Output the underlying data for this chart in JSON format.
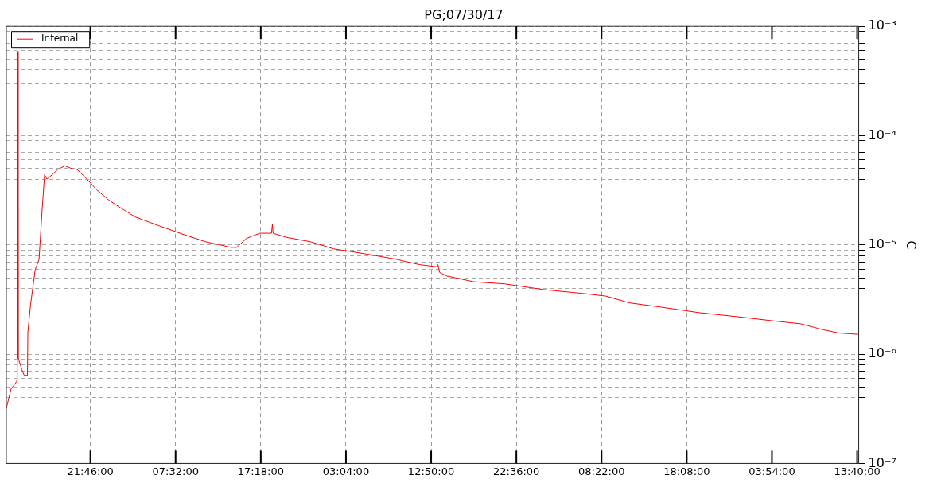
{
  "chart_data": {
    "type": "line",
    "title": "PG;07/30/17",
    "ylabel": "C",
    "xlim": [
      "--07-30T12:08",
      "--08-03T13:51"
    ],
    "xticks": [
      {
        "value": "--07-30T21:46",
        "label": "21:46:00"
      },
      {
        "value": "--07-31T07:32",
        "label": "07:32:00"
      },
      {
        "value": "--07-31T17:18",
        "label": "17:18:00"
      },
      {
        "value": "--08-01T03:04",
        "label": "03:04:00"
      },
      {
        "value": "--08-01T12:50",
        "label": "12:50:00"
      },
      {
        "value": "--08-01T22:36",
        "label": "22:36:00"
      },
      {
        "value": "--08-02T08:22",
        "label": "08:22:00"
      },
      {
        "value": "--08-02T18:08",
        "label": "18:08:00"
      },
      {
        "value": "--08-03T03:54",
        "label": "03:54:00"
      },
      {
        "value": "--08-03T13:40",
        "label": "13:40:00"
      }
    ],
    "ylim": [
      1e-07,
      0.001
    ],
    "yticks": [
      {
        "value": 1e-07,
        "label": "10⁻⁷"
      },
      {
        "value": 2e-07,
        "label": null
      },
      {
        "value": 3e-07,
        "label": null
      },
      {
        "value": 4e-07,
        "label": null
      },
      {
        "value": 5e-07,
        "label": null
      },
      {
        "value": 6e-07,
        "label": null
      },
      {
        "value": 7e-07,
        "label": null
      },
      {
        "value": 8e-07,
        "label": null
      },
      {
        "value": 9e-07,
        "label": null
      },
      {
        "value": 1e-06,
        "label": "10⁻⁶"
      },
      {
        "value": 2e-06,
        "label": null
      },
      {
        "value": 3e-06,
        "label": null
      },
      {
        "value": 4e-06,
        "label": null
      },
      {
        "value": 5e-06,
        "label": null
      },
      {
        "value": 6e-06,
        "label": null
      },
      {
        "value": 7e-06,
        "label": null
      },
      {
        "value": 8e-06,
        "label": null
      },
      {
        "value": 9e-06,
        "label": null
      },
      {
        "value": 1e-05,
        "label": "10⁻⁵"
      },
      {
        "value": 2e-05,
        "label": null
      },
      {
        "value": 3e-05,
        "label": null
      },
      {
        "value": 4e-05,
        "label": null
      },
      {
        "value": 5e-05,
        "label": null
      },
      {
        "value": 6e-05,
        "label": null
      },
      {
        "value": 7e-05,
        "label": null
      },
      {
        "value": 8e-05,
        "label": null
      },
      {
        "value": 9e-05,
        "label": null
      },
      {
        "value": 0.0001,
        "label": "10⁻⁴"
      },
      {
        "value": 0.0002,
        "label": null
      },
      {
        "value": 0.0003,
        "label": null
      },
      {
        "value": 0.0004,
        "label": null
      },
      {
        "value": 0.0005,
        "label": null
      },
      {
        "value": 0.0006,
        "label": null
      },
      {
        "value": 0.0007,
        "label": null
      },
      {
        "value": 0.0008,
        "label": null
      },
      {
        "value": 0.0009,
        "label": null
      },
      {
        "value": 0.001,
        "label": "10⁻³"
      }
    ],
    "log": "y",
    "grid": true,
    "legend": "top left",
    "marker": "none",
    "line_style": "solid",
    "series": [
      {
        "name": "Internal",
        "color": "#ff0000",
        "x": [
          "--07-30T12:08",
          "--07-30T12:40",
          "--07-30T13:18",
          "--07-30T13:23",
          "--07-30T13:26",
          "--07-30T13:29",
          "--07-30T13:31",
          "--07-30T13:55",
          "--07-30T14:11",
          "--07-30T14:33",
          "--07-30T14:36",
          "--07-30T14:38",
          "--07-30T14:54",
          "--07-30T15:26",
          "--07-30T15:53",
          "--07-30T16:14",
          "--07-30T16:31",
          "--07-30T16:47",
          "--07-30T17:24",
          "--07-30T18:01",
          "--07-30T18:50",
          "--07-30T19:38",
          "--07-30T20:15",
          "--07-30T21:08",
          "--07-30T22:29",
          "--07-30T23:49",
          "--07-31T01:10",
          "--07-31T02:56",
          "--07-31T05:37",
          "--07-31T08:17",
          "--07-31T10:58",
          "--07-31T13:54",
          "--07-31T14:32",
          "--07-31T15:41",
          "--07-31T17:12",
          "--07-31T18:32",
          "--07-31T18:38",
          "--07-31T18:43",
          "--07-31T20:19",
          "--07-31T22:59",
          "--08-01T01:40",
          "--08-01T05:14",
          "--08-01T08:48",
          "--08-01T11:29",
          "--08-01T13:32",
          "--08-01T13:37",
          "--08-01T13:48",
          "--08-01T14:36",
          "--08-01T17:43",
          "--08-01T21:17",
          "--08-02T01:44",
          "--08-02T06:12",
          "--08-02T08:52",
          "--08-02T11:33",
          "--08-02T15:07",
          "--08-02T19:34",
          "--08-03T00:02",
          "--08-03T04:29",
          "--08-03T07:10",
          "--08-03T09:50",
          "--08-03T11:37",
          "--08-03T13:51"
        ],
        "values": [
          3.2e-07,
          4.8e-07,
          5.6e-07,
          5.9e-07,
          0.00059,
          9.1e-07,
          9.1e-07,
          7.2e-07,
          6.4e-07,
          6.4e-07,
          1.6e-06,
          1.6e-06,
          2.8e-06,
          5.9e-06,
          7.4e-06,
          2.1e-05,
          4.4e-05,
          4e-05,
          4.4e-05,
          4.9e-05,
          5.3e-05,
          5e-05,
          4.9e-05,
          4.2e-05,
          3.2e-05,
          2.6e-05,
          2.2e-05,
          1.8e-05,
          1.5e-05,
          1.26e-05,
          1.07e-05,
          9.5e-06,
          9.5e-06,
          1.15e-05,
          1.28e-05,
          1.28e-05,
          1.55e-05,
          1.28e-05,
          1.17e-05,
          1.07e-05,
          9.2e-06,
          8.3e-06,
          7.4e-06,
          6.6e-06,
          6.3e-06,
          6.6e-06,
          5.6e-06,
          5.2e-06,
          4.6e-06,
          4.4e-06,
          3.9e-06,
          3.6e-06,
          3.4e-06,
          2.95e-06,
          2.7e-06,
          2.4e-06,
          2.2e-06,
          2e-06,
          1.9e-06,
          1.67e-06,
          1.56e-06,
          1.52e-06
        ]
      }
    ]
  }
}
